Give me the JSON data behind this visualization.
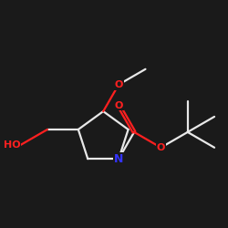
{
  "background_color": "#1a1a1a",
  "bond_color": "#e8e8e8",
  "atom_colors": {
    "O": "#ff2020",
    "N": "#3333ff",
    "C": "#e8e8e8"
  },
  "figsize": [
    2.5,
    2.5
  ],
  "dpi": 100
}
